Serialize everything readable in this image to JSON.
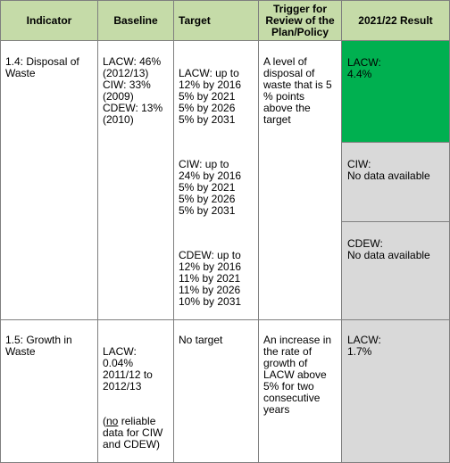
{
  "headers": {
    "indicator": "Indicator",
    "baseline": "Baseline",
    "target": "Target",
    "trigger": "Trigger for Review of the Plan/Policy",
    "result": "2021/22 Result"
  },
  "rows": [
    {
      "indicator": "1.4: Disposal of Waste",
      "baseline": "LACW: 46%\n(2012/13)\nCIW: 33%\n(2009)\nCDEW: 13%\n(2010)",
      "targets": [
        "LACW: up to\n12% by 2016\n5% by 2021\n5% by 2026\n5% by 2031",
        "CIW: up to\n24% by 2016\n5% by 2021\n5% by 2026\n5% by 2031",
        "CDEW: up to\n12% by 2016\n11% by 2021\n11% by 2026\n10% by 2031"
      ],
      "trigger": "A level of\ndisposal of\nwaste that is 5\n% points\nabove the\ntarget",
      "results": [
        "LACW:\n4.4%",
        "CIW:\nNo data available",
        "CDEW:\nNo data available"
      ]
    },
    {
      "indicator": "1.5: Growth in Waste",
      "baseline": "LACW:\n0.04%\n2011/12 to\n2012/13",
      "baseline_note_prefix": "(",
      "baseline_note_underline": "no",
      "baseline_note_rest": " reliable\ndata for CIW\nand CDEW)",
      "target": "No target",
      "trigger": "An increase in\nthe rate of\ngrowth of\nLACW above\n5% for two\nconsecutive\nyears",
      "result": "LACW:\n1.7%"
    }
  ],
  "colors": {
    "header_bg": "#c5dba8",
    "result_green": "#00b050",
    "result_grey": "#d9d9d9",
    "border": "#7f7f7f"
  }
}
